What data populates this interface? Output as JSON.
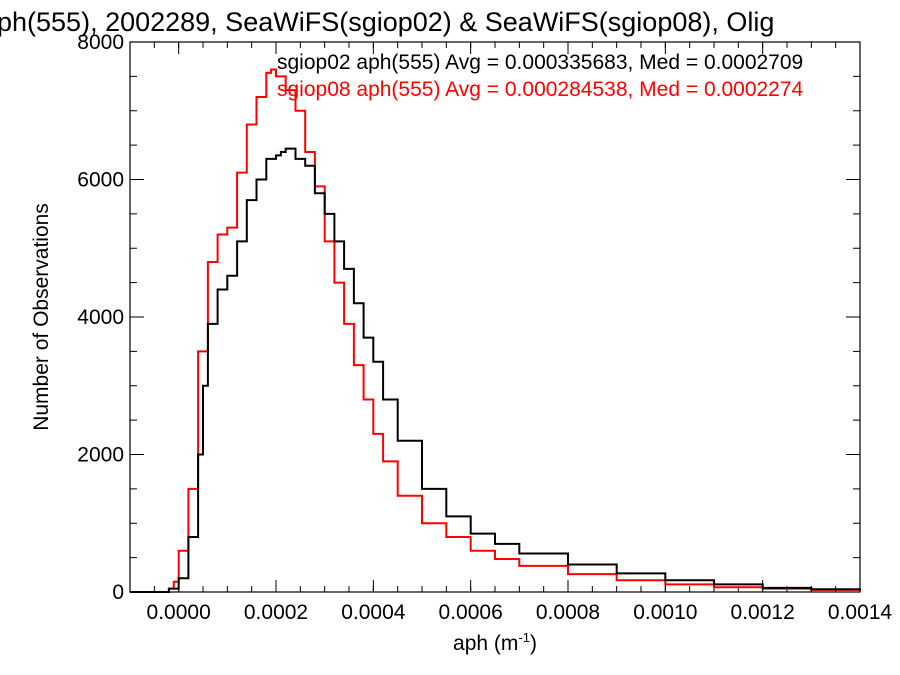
{
  "chart_data": {
    "type": "line",
    "title": "ph(555), 2002289, SeaWiFS(sgiop02) & SeaWiFS(sgiop08), Olig",
    "xlabel": "aph (m",
    "xlabel_sup": "-1",
    "xlabel_close": ")",
    "ylabel": "Number of Observations",
    "xlim": [
      -0.0001,
      0.0014
    ],
    "ylim": [
      0,
      8000
    ],
    "xticks": [
      0.0,
      0.0002,
      0.0004,
      0.0006,
      0.0008,
      0.001,
      0.0012,
      0.0014
    ],
    "xtick_labels": [
      "0.0000",
      "0.0002",
      "0.0004",
      "0.0006",
      "0.0008",
      "0.0010",
      "0.0012",
      "0.0014"
    ],
    "yticks": [
      0,
      2000,
      4000,
      6000,
      8000
    ],
    "ytick_labels": [
      "0",
      "2000",
      "4000",
      "6000",
      "8000"
    ],
    "grid": false,
    "series": [
      {
        "name": "sgiop02",
        "label": "sgiop02 aph(555) Avg = 0.000335683, Med = 0.0002709",
        "color": "#000000",
        "x": [
          -0.0001,
          -5e-05,
          -2e-05,
          0.0,
          2e-05,
          4e-05,
          5e-05,
          6e-05,
          8e-05,
          0.0001,
          0.00012,
          0.00014,
          0.00016,
          0.00018,
          0.0002,
          0.00021,
          0.00022,
          0.00024,
          0.00026,
          0.00028,
          0.0003,
          0.00032,
          0.00034,
          0.00036,
          0.00038,
          0.0004,
          0.00042,
          0.00045,
          0.0005,
          0.00055,
          0.0006,
          0.00065,
          0.0007,
          0.0008,
          0.0009,
          0.001,
          0.0011,
          0.0012,
          0.0013,
          0.0014
        ],
        "y": [
          0,
          0,
          50,
          200,
          800,
          2000,
          3000,
          3900,
          4400,
          4600,
          5100,
          5700,
          6000,
          6300,
          6350,
          6400,
          6450,
          6300,
          6200,
          5800,
          5500,
          5100,
          4700,
          4200,
          3700,
          3350,
          2800,
          2200,
          1500,
          1100,
          850,
          700,
          560,
          400,
          270,
          170,
          110,
          60,
          40,
          20
        ]
      },
      {
        "name": "sgiop08",
        "label": "sgiop08 aph(555) Avg = 0.000284538, Med = 0.0002274",
        "color": "#ff0000",
        "x": [
          -0.0001,
          -5e-05,
          -2e-05,
          -1e-05,
          0.0,
          2e-05,
          4e-05,
          6e-05,
          8e-05,
          0.0001,
          0.00012,
          0.00014,
          0.00016,
          0.00018,
          0.00019,
          0.0002,
          0.00022,
          0.00024,
          0.00026,
          0.00028,
          0.0003,
          0.00032,
          0.00034,
          0.00036,
          0.00038,
          0.0004,
          0.00042,
          0.00045,
          0.0005,
          0.00055,
          0.0006,
          0.00065,
          0.0007,
          0.0008,
          0.0009,
          0.001,
          0.0011,
          0.0012,
          0.0013,
          0.0014
        ],
        "y": [
          0,
          0,
          50,
          150,
          600,
          1500,
          3500,
          4800,
          5200,
          5300,
          6100,
          6800,
          7200,
          7550,
          7600,
          7500,
          7300,
          7000,
          6400,
          5900,
          5100,
          4500,
          3900,
          3300,
          2800,
          2300,
          1900,
          1400,
          1000,
          800,
          600,
          480,
          380,
          260,
          170,
          110,
          70,
          50,
          30,
          20
        ]
      }
    ]
  }
}
